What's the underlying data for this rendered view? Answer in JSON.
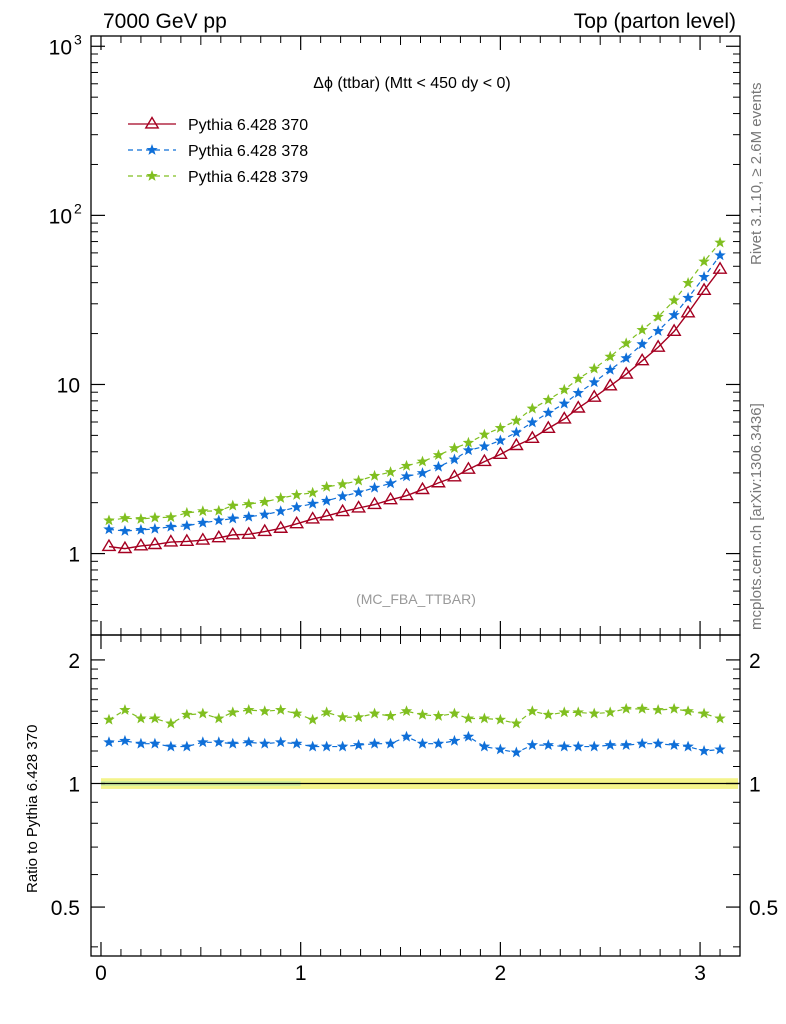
{
  "header": {
    "left": "7000 GeV pp",
    "right": "Top (parton level)"
  },
  "side": {
    "rivet": "Rivet 3.1.10, ≥ 2.6M events",
    "mcplots": "mcplots.cern.ch [arXiv:1306.3436]"
  },
  "chart_data": [
    {
      "type": "line",
      "panel": "main",
      "title": "Δϕ (ttbar) (Mtt < 450 dy < 0)",
      "analysis": "(MC_FBA_TTBAR)",
      "xlabel": "",
      "ylabel": "",
      "xlim": [
        -0.05,
        3.2
      ],
      "ylim": [
        0.33,
        1150
      ],
      "yscale": "log",
      "legend": "top-left",
      "ytick_labels": [
        "1",
        "10",
        "10",
        "10"
      ],
      "ytick_exponents": [
        "",
        "",
        "2",
        "3"
      ],
      "x": [
        0.04,
        0.12,
        0.2,
        0.27,
        0.35,
        0.43,
        0.51,
        0.59,
        0.66,
        0.74,
        0.82,
        0.9,
        0.98,
        1.06,
        1.13,
        1.21,
        1.29,
        1.37,
        1.45,
        1.53,
        1.61,
        1.69,
        1.77,
        1.84,
        1.92,
        2.0,
        2.08,
        2.16,
        2.24,
        2.32,
        2.39,
        2.47,
        2.55,
        2.63,
        2.71,
        2.79,
        2.87,
        2.94,
        3.02,
        3.1
      ],
      "series": [
        {
          "name": "Pythia 6.428 370",
          "color": "#a50021",
          "marker": "triangle",
          "dash": "solid",
          "values": [
            1.1,
            1.07,
            1.11,
            1.13,
            1.17,
            1.18,
            1.2,
            1.24,
            1.29,
            1.3,
            1.35,
            1.41,
            1.5,
            1.6,
            1.67,
            1.77,
            1.86,
            1.95,
            2.08,
            2.2,
            2.39,
            2.62,
            2.84,
            3.15,
            3.5,
            3.86,
            4.35,
            4.8,
            5.5,
            6.25,
            7.25,
            8.4,
            9.8,
            11.5,
            13.8,
            16.6,
            20.6,
            26.5,
            36.0,
            48.0
          ]
        },
        {
          "name": "Pythia 6.428 378",
          "color": "#0f6fd8",
          "marker": "star",
          "dash": "dashed",
          "values": [
            1.39,
            1.36,
            1.38,
            1.4,
            1.44,
            1.46,
            1.52,
            1.57,
            1.61,
            1.65,
            1.7,
            1.78,
            1.88,
            1.97,
            2.05,
            2.18,
            2.3,
            2.45,
            2.6,
            2.86,
            2.99,
            3.26,
            3.6,
            4.08,
            4.3,
            4.66,
            5.2,
            5.96,
            6.8,
            7.7,
            8.9,
            10.3,
            12.2,
            14.3,
            17.3,
            20.7,
            25.7,
            32.5,
            43.2,
            58.0
          ]
        },
        {
          "name": "Pythia 6.428 379",
          "color": "#80bf20",
          "marker": "star",
          "dash": "dashed",
          "values": [
            1.57,
            1.62,
            1.6,
            1.63,
            1.64,
            1.74,
            1.78,
            1.79,
            1.92,
            1.96,
            2.02,
            2.13,
            2.22,
            2.29,
            2.48,
            2.57,
            2.7,
            2.88,
            3.03,
            3.3,
            3.5,
            3.82,
            4.2,
            4.52,
            5.05,
            5.53,
            6.1,
            7.2,
            8.1,
            9.3,
            10.8,
            12.4,
            14.6,
            17.5,
            21.0,
            25.1,
            31.4,
            39.8,
            53.3,
            69.0
          ]
        }
      ]
    },
    {
      "type": "line",
      "panel": "ratio",
      "xlabel": "",
      "ylabel": "Ratio to Pythia 6.428 370",
      "xlim": [
        -0.05,
        3.2
      ],
      "ylim": [
        0.38,
        2.3
      ],
      "yscale": "log",
      "ytick_labels": [
        "0.5",
        "1",
        "2"
      ],
      "xtick_labels": [
        "0",
        "1",
        "2",
        "3"
      ],
      "reference_band": {
        "color": "#f4f48a",
        "inner_color": "#c4e8a0",
        "value": 1.0,
        "halfwidth": 0.03
      },
      "series": [
        {
          "name": "Pythia 6.428 378",
          "color": "#0f6fd8",
          "values": [
            1.26,
            1.27,
            1.25,
            1.25,
            1.23,
            1.23,
            1.26,
            1.26,
            1.25,
            1.26,
            1.25,
            1.26,
            1.25,
            1.23,
            1.23,
            1.23,
            1.24,
            1.25,
            1.25,
            1.3,
            1.25,
            1.25,
            1.27,
            1.3,
            1.23,
            1.21,
            1.19,
            1.24,
            1.24,
            1.23,
            1.23,
            1.23,
            1.24,
            1.24,
            1.25,
            1.25,
            1.24,
            1.23,
            1.2,
            1.21
          ]
        },
        {
          "name": "Pythia 6.428 379",
          "color": "#80bf20",
          "values": [
            1.43,
            1.51,
            1.44,
            1.44,
            1.4,
            1.47,
            1.48,
            1.44,
            1.49,
            1.51,
            1.5,
            1.51,
            1.48,
            1.43,
            1.49,
            1.45,
            1.45,
            1.48,
            1.46,
            1.5,
            1.47,
            1.46,
            1.48,
            1.44,
            1.44,
            1.43,
            1.4,
            1.5,
            1.47,
            1.49,
            1.49,
            1.48,
            1.49,
            1.52,
            1.52,
            1.51,
            1.52,
            1.5,
            1.48,
            1.44
          ]
        }
      ]
    }
  ]
}
